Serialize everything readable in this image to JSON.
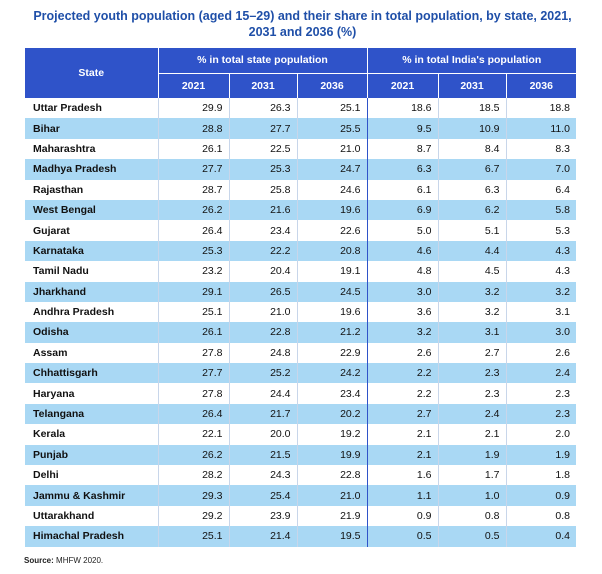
{
  "title": "Projected youth population (aged 15–29) and their share in total population, by state, 2021, 2031 and 2036 (%)",
  "header": {
    "state": "State",
    "group1": "% in total state population",
    "group2": "% in total India's population",
    "years": [
      "2021",
      "2031",
      "2036",
      "2021",
      "2031",
      "2036"
    ]
  },
  "rows": [
    {
      "state": "Uttar Pradesh",
      "values": [
        "29.9",
        "26.3",
        "25.1",
        "18.6",
        "18.5",
        "18.8"
      ]
    },
    {
      "state": "Bihar",
      "values": [
        "28.8",
        "27.7",
        "25.5",
        "9.5",
        "10.9",
        "11.0"
      ]
    },
    {
      "state": "Maharashtra",
      "values": [
        "26.1",
        "22.5",
        "21.0",
        "8.7",
        "8.4",
        "8.3"
      ]
    },
    {
      "state": "Madhya Pradesh",
      "values": [
        "27.7",
        "25.3",
        "24.7",
        "6.3",
        "6.7",
        "7.0"
      ]
    },
    {
      "state": "Rajasthan",
      "values": [
        "28.7",
        "25.8",
        "24.6",
        "6.1",
        "6.3",
        "6.4"
      ]
    },
    {
      "state": "West Bengal",
      "values": [
        "26.2",
        "21.6",
        "19.6",
        "6.9",
        "6.2",
        "5.8"
      ]
    },
    {
      "state": "Gujarat",
      "values": [
        "26.4",
        "23.4",
        "22.6",
        "5.0",
        "5.1",
        "5.3"
      ]
    },
    {
      "state": "Karnataka",
      "values": [
        "25.3",
        "22.2",
        "20.8",
        "4.6",
        "4.4",
        "4.3"
      ]
    },
    {
      "state": "Tamil Nadu",
      "values": [
        "23.2",
        "20.4",
        "19.1",
        "4.8",
        "4.5",
        "4.3"
      ]
    },
    {
      "state": "Jharkhand",
      "values": [
        "29.1",
        "26.5",
        "24.5",
        "3.0",
        "3.2",
        "3.2"
      ]
    },
    {
      "state": "Andhra Pradesh",
      "values": [
        "25.1",
        "21.0",
        "19.6",
        "3.6",
        "3.2",
        "3.1"
      ]
    },
    {
      "state": "Odisha",
      "values": [
        "26.1",
        "22.8",
        "21.2",
        "3.2",
        "3.1",
        "3.0"
      ]
    },
    {
      "state": "Assam",
      "values": [
        "27.8",
        "24.8",
        "22.9",
        "2.6",
        "2.7",
        "2.6"
      ]
    },
    {
      "state": "Chhattisgarh",
      "values": [
        "27.7",
        "25.2",
        "24.2",
        "2.2",
        "2.3",
        "2.4"
      ]
    },
    {
      "state": "Haryana",
      "values": [
        "27.8",
        "24.4",
        "23.4",
        "2.2",
        "2.3",
        "2.3"
      ]
    },
    {
      "state": "Telangana",
      "values": [
        "26.4",
        "21.7",
        "20.2",
        "2.7",
        "2.4",
        "2.3"
      ]
    },
    {
      "state": "Kerala",
      "values": [
        "22.1",
        "20.0",
        "19.2",
        "2.1",
        "2.1",
        "2.0"
      ]
    },
    {
      "state": "Punjab",
      "values": [
        "26.2",
        "21.5",
        "19.9",
        "2.1",
        "1.9",
        "1.9"
      ]
    },
    {
      "state": "Delhi",
      "values": [
        "28.2",
        "24.3",
        "22.8",
        "1.6",
        "1.7",
        "1.8"
      ]
    },
    {
      "state": "Jammu & Kashmir",
      "values": [
        "29.3",
        "25.4",
        "21.0",
        "1.1",
        "1.0",
        "0.9"
      ]
    },
    {
      "state": "Uttarakhand",
      "values": [
        "29.2",
        "23.9",
        "21.9",
        "0.9",
        "0.8",
        "0.8"
      ]
    },
    {
      "state": "Himachal Pradesh",
      "values": [
        "25.1",
        "21.4",
        "19.5",
        "0.5",
        "0.5",
        "0.4"
      ]
    }
  ],
  "source": {
    "label": "Source:",
    "text": "MHFW 2020."
  },
  "colors": {
    "header_bg": "#2f53c9",
    "title": "#1f4fa8",
    "stripe": "#a9d8f4"
  }
}
